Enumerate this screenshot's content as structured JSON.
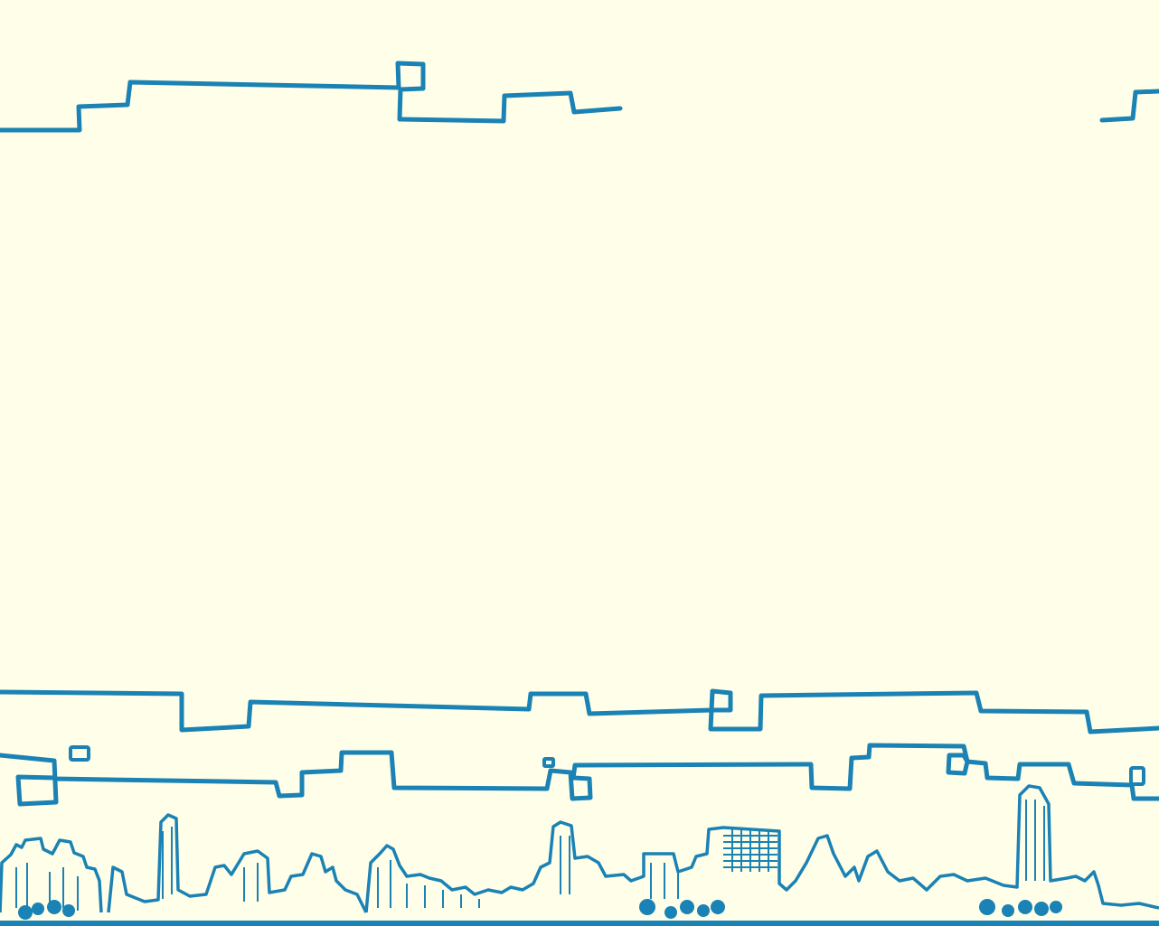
{
  "background": {
    "color": "#fffee8",
    "line_color": "#1a82b4"
  },
  "scene": {
    "description_icon": "city-skyline-illustration"
  }
}
